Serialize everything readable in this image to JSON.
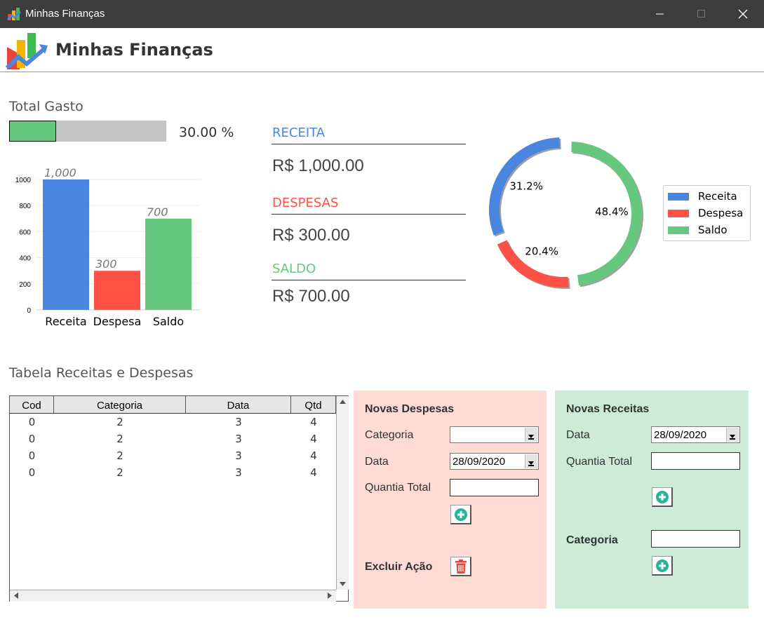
{
  "window": {
    "title": "Minhas Finanças",
    "app_name": "Minhas Finanças"
  },
  "total_gasto": {
    "title": "Total Gasto",
    "percent": 30.0,
    "label": "30.00 %"
  },
  "stats": {
    "receita": {
      "label": "RECEITA",
      "value": "R$ 1,000.00",
      "color": "#4a86e0"
    },
    "despesas": {
      "label": "DESPESAS",
      "value": "R$ 300.00",
      "color": "#ff5145"
    },
    "saldo": {
      "label": "SALDO",
      "value": "R$ 700.00",
      "color": "#66c77f"
    }
  },
  "chart_data": [
    {
      "type": "bar",
      "categories": [
        "Receita",
        "Despesa",
        "Saldo"
      ],
      "values": [
        1000,
        300,
        700
      ],
      "data_labels": [
        "1,000",
        "300",
        "700"
      ],
      "colors": [
        "#4a86e0",
        "#ff5145",
        "#66c77f"
      ],
      "ylim": [
        0,
        1000
      ],
      "yticks": [
        "0",
        "200",
        "400",
        "600",
        "800",
        "1000"
      ],
      "grid": true
    },
    {
      "type": "pie",
      "donut": true,
      "labels": [
        "Receita",
        "Despesa",
        "Saldo"
      ],
      "values": [
        31.2,
        20.4,
        48.4
      ],
      "data_labels": [
        "31.2%",
        "20.4%",
        "48.4%"
      ],
      "colors": [
        "#4a86e0",
        "#ff5145",
        "#66c77f"
      ],
      "legend_position": "right"
    }
  ],
  "table": {
    "title": "Tabela Receitas e Despesas",
    "columns": [
      "Cod",
      "Categoria",
      "Data",
      "Qtd"
    ],
    "rows": [
      [
        "0",
        "2",
        "3",
        "4"
      ],
      [
        "0",
        "2",
        "3",
        "4"
      ],
      [
        "0",
        "2",
        "3",
        "4"
      ],
      [
        "0",
        "2",
        "3",
        "4"
      ]
    ]
  },
  "novas_despesas": {
    "title": "Novas Despesas",
    "categoria_label": "Categoria",
    "categoria_value": "",
    "data_label": "Data",
    "data_value": "28/09/2020",
    "quantia_label": "Quantia Total",
    "quantia_value": "",
    "excluir_label": "Excluir Ação",
    "bg": "#ffdbd6"
  },
  "novas_receitas": {
    "title": "Novas Receitas",
    "data_label": "Data",
    "data_value": "28/09/2020",
    "quantia_label": "Quantia Total",
    "quantia_value": "",
    "categoria_label": "Categoria",
    "categoria_value": "",
    "bg": "#cdebd5"
  },
  "icons": {
    "add": "plus-circle-icon",
    "delete": "trash-icon",
    "minimize": "minimize-icon",
    "maximize": "maximize-icon",
    "close": "close-icon"
  }
}
